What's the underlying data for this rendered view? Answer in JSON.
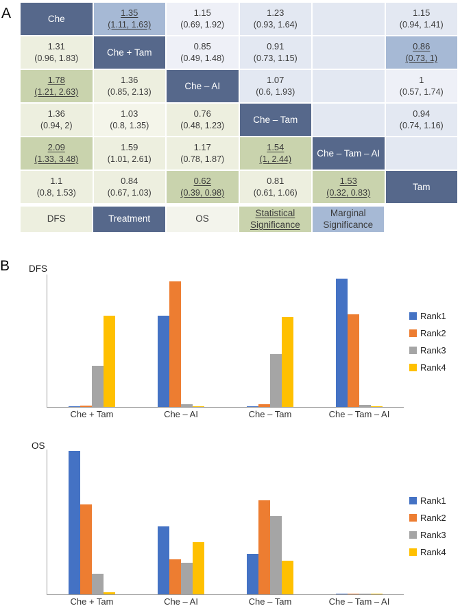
{
  "panels": {
    "a": "A",
    "b": "B"
  },
  "colors": {
    "diag": "#56688b",
    "marginal": "#a6b9d5",
    "upper": "#e3e8f2",
    "upper2": "#eef0f7",
    "lower": "#edefdf",
    "lower2": "#f4f5ea",
    "sig": "#c9d3ad",
    "os": "#f3f4ec",
    "rank1": "#4472c4",
    "rank2": "#ed7d31",
    "rank3": "#a5a5a5",
    "rank4": "#ffc000"
  },
  "league_table": {
    "treatments": [
      "Che",
      "Che + Tam",
      "Che – AI",
      "Che – Tam",
      "Che – Tam – AI",
      "Tam"
    ],
    "rows": [
      [
        {
          "type": "diag",
          "label": "Che"
        },
        {
          "type": "marginal",
          "est": "1.35",
          "ci": "(1.11, 1.63)",
          "underline": true
        },
        {
          "type": "upper2",
          "est": "1.15",
          "ci": "(0.69, 1.92)"
        },
        {
          "type": "upper",
          "est": "1.23",
          "ci": "(0.93, 1.64)"
        },
        {
          "type": "upper",
          "blank": true
        },
        {
          "type": "upper",
          "est": "1.15",
          "ci": "(0.94, 1.41)"
        }
      ],
      [
        {
          "type": "lower",
          "est": "1.31",
          "ci": "(0.96, 1.83)"
        },
        {
          "type": "diag",
          "label": "Che + Tam"
        },
        {
          "type": "upper2",
          "est": "0.85",
          "ci": "(0.49, 1.48)"
        },
        {
          "type": "upper",
          "est": "0.91",
          "ci": "(0.73, 1.15)"
        },
        {
          "type": "upper",
          "blank": true
        },
        {
          "type": "marginal",
          "est": "0.86",
          "ci": "(0.73, 1)",
          "underline": true
        }
      ],
      [
        {
          "type": "sig",
          "est": "1.78",
          "ci": "(1.21, 2.63)",
          "underline": true
        },
        {
          "type": "lower",
          "est": "1.36",
          "ci": "(0.85, 2.13)"
        },
        {
          "type": "diag",
          "label": "Che – AI"
        },
        {
          "type": "upper",
          "est": "1.07",
          "ci": "(0.6, 1.93)"
        },
        {
          "type": "upper",
          "blank": true
        },
        {
          "type": "upper2",
          "est": "1",
          "ci": "(0.57, 1.74)"
        }
      ],
      [
        {
          "type": "lower",
          "est": "1.36",
          "ci": "(0.94, 2)"
        },
        {
          "type": "lower2",
          "est": "1.03",
          "ci": "(0.8, 1.35)"
        },
        {
          "type": "lower",
          "est": "0.76",
          "ci": "(0.48, 1.23)"
        },
        {
          "type": "diag",
          "label": "Che – Tam"
        },
        {
          "type": "upper",
          "blank": true
        },
        {
          "type": "upper",
          "est": "0.94",
          "ci": "(0.74, 1.16)"
        }
      ],
      [
        {
          "type": "sig",
          "est": "2.09",
          "ci": "(1.33, 3.48)",
          "underline": true
        },
        {
          "type": "lower",
          "est": "1.59",
          "ci": "(1.01, 2.61)"
        },
        {
          "type": "lower",
          "est": "1.17",
          "ci": "(0.78, 1.87)"
        },
        {
          "type": "sig",
          "est": "1.54",
          "ci": "(1, 2.44)",
          "underline": true
        },
        {
          "type": "diag",
          "label": "Che – Tam – AI"
        },
        {
          "type": "upper",
          "blank": true
        }
      ],
      [
        {
          "type": "lower",
          "est": "1.1",
          "ci": "(0.8, 1.53)"
        },
        {
          "type": "lower",
          "est": "0.84",
          "ci": "(0.67, 1.03)"
        },
        {
          "type": "sig",
          "est": "0.62",
          "ci": "(0.39, 0.98)",
          "underline": true
        },
        {
          "type": "lower",
          "est": "0.81",
          "ci": "(0.61, 1.06)"
        },
        {
          "type": "sig",
          "est": "1.53",
          "ci": "(0.32, 0.83)",
          "underline": true
        },
        {
          "type": "diag",
          "label": "Tam"
        }
      ]
    ],
    "legend": [
      {
        "type": "lower",
        "lines": [
          "DFS"
        ]
      },
      {
        "type": "diag",
        "lines": [
          "Treatment"
        ]
      },
      {
        "type": "os",
        "lines": [
          "OS"
        ]
      },
      {
        "type": "sig",
        "lines": [
          "Statistical",
          "Significance"
        ],
        "underline": true
      },
      {
        "type": "marginal",
        "lines": [
          "Marginal",
          "Significance"
        ]
      }
    ]
  },
  "chart_data": [
    {
      "type": "table",
      "rows": [
        [
          "Che",
          "1.35 (1.11, 1.63)",
          "1.15 (0.69, 1.92)",
          "1.23 (0.93, 1.64)",
          "",
          "1.15 (0.94, 1.41)"
        ],
        [
          "1.31 (0.96, 1.83)",
          "Che + Tam",
          "0.85 (0.49, 1.48)",
          "0.91 (0.73, 1.15)",
          "",
          "0.86 (0.73, 1)"
        ],
        [
          "1.78 (1.21, 2.63)",
          "1.36 (0.85, 2.13)",
          "Che – AI",
          "1.07 (0.6, 1.93)",
          "",
          "1 (0.57, 1.74)"
        ],
        [
          "1.36 (0.94, 2)",
          "1.03 (0.8, 1.35)",
          "0.76 (0.48, 1.23)",
          "Che – Tam",
          "",
          "0.94 (0.74, 1.16)"
        ],
        [
          "2.09 (1.33, 3.48)",
          "1.59 (1.01, 2.61)",
          "1.17 (0.78, 1.87)",
          "1.54 (1, 2.44)",
          "Che – Tam – AI",
          ""
        ],
        [
          "1.1 (0.8, 1.53)",
          "0.84 (0.67, 1.03)",
          "0.62 (0.39, 0.98)",
          "0.81 (0.61, 1.06)",
          "1.53 (0.32, 0.83)",
          "Tam"
        ]
      ],
      "underlined_cells": [
        "1.35 (1.11, 1.63)",
        "0.86 (0.73, 1)",
        "1.78 (1.21, 2.63)",
        "2.09 (1.33, 3.48)",
        "1.54 (1, 2.44)",
        "0.62 (0.39, 0.98)",
        "1.53 (0.32, 0.83)"
      ],
      "legend": [
        "DFS",
        "Treatment",
        "OS",
        "Statistical Significance",
        "Marginal Significance"
      ]
    },
    {
      "type": "bar",
      "title": "DFS",
      "categories": [
        "Che + Tam",
        "Che – AI",
        "Che – Tam",
        "Che – Tam – AI"
      ],
      "series": [
        {
          "name": "Rank1",
          "color": "#4472c4",
          "values": [
            0.005,
            0.69,
            0.005,
            0.97
          ]
        },
        {
          "name": "Rank2",
          "color": "#ed7d31",
          "values": [
            0.012,
            0.95,
            0.02,
            0.7
          ]
        },
        {
          "name": "Rank3",
          "color": "#a5a5a5",
          "values": [
            0.31,
            0.02,
            0.4,
            0.015
          ]
        },
        {
          "name": "Rank4",
          "color": "#ffc000",
          "values": [
            0.69,
            0.005,
            0.68,
            0.005
          ]
        }
      ],
      "xlabel": "",
      "ylabel": "",
      "ylim": [
        0,
        1
      ],
      "grid": false,
      "legend": [
        "Rank1",
        "Rank2",
        "Rank3",
        "Rank4"
      ],
      "legend_position": "right"
    },
    {
      "type": "bar",
      "title": "OS",
      "categories": [
        "Che + Tam",
        "Che – AI",
        "Che – Tam",
        "Che – Tam – AI"
      ],
      "series": [
        {
          "name": "Rank1",
          "color": "#4472c4",
          "values": [
            0.99,
            0.47,
            0.28,
            0.004
          ]
        },
        {
          "name": "Rank2",
          "color": "#ed7d31",
          "values": [
            0.62,
            0.24,
            0.65,
            0.004
          ]
        },
        {
          "name": "Rank3",
          "color": "#a5a5a5",
          "values": [
            0.14,
            0.22,
            0.54,
            0.004
          ]
        },
        {
          "name": "Rank4",
          "color": "#ffc000",
          "values": [
            0.012,
            0.36,
            0.23,
            0.004
          ]
        }
      ],
      "xlabel": "",
      "ylabel": "",
      "ylim": [
        0,
        1
      ],
      "grid": false,
      "legend": [
        "Rank1",
        "Rank2",
        "Rank3",
        "Rank4"
      ],
      "legend_position": "right"
    }
  ]
}
